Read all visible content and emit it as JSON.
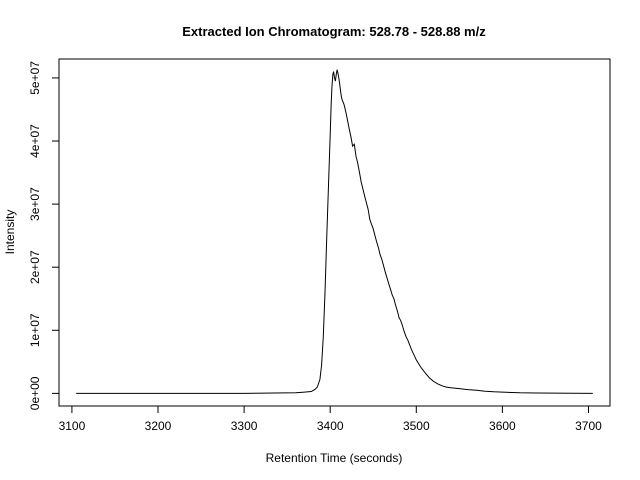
{
  "chart_data": {
    "type": "line",
    "title": "Extracted Ion Chromatogram: 528.78 - 528.88 m/z",
    "xlabel": "Retention Time (seconds)",
    "ylabel": "Intensity",
    "xlim": [
      3085,
      3725
    ],
    "ylim": [
      -2000000,
      53000000
    ],
    "x_ticks": [
      3100,
      3200,
      3300,
      3400,
      3500,
      3600,
      3700
    ],
    "x_tick_labels": [
      "3100",
      "3200",
      "3300",
      "3400",
      "3500",
      "3600",
      "3700"
    ],
    "y_ticks": [
      0,
      10000000,
      20000000,
      30000000,
      40000000,
      50000000
    ],
    "y_tick_labels": [
      "0e+00",
      "1e+07",
      "2e+07",
      "3e+07",
      "4e+07",
      "5e+07"
    ],
    "grid": false,
    "legend": "none",
    "color": "#000000",
    "series": [
      {
        "x": [
          3105,
          3200,
          3300,
          3360,
          3370,
          3378,
          3382,
          3385,
          3388,
          3390,
          3392,
          3394,
          3396,
          3398,
          3400,
          3401,
          3402,
          3403,
          3404,
          3405,
          3406,
          3407,
          3408,
          3409,
          3410,
          3411,
          3412,
          3413,
          3414,
          3416,
          3418,
          3420,
          3422,
          3424,
          3426,
          3428,
          3430,
          3432,
          3434,
          3436,
          3438,
          3440,
          3442,
          3444,
          3446,
          3448,
          3450,
          3452,
          3454,
          3456,
          3458,
          3460,
          3462,
          3464,
          3466,
          3468,
          3470,
          3472,
          3474,
          3476,
          3478,
          3480,
          3482,
          3484,
          3486,
          3488,
          3490,
          3492,
          3494,
          3496,
          3498,
          3500,
          3505,
          3510,
          3515,
          3520,
          3525,
          3530,
          3535,
          3540,
          3550,
          3560,
          3570,
          3580,
          3590,
          3600,
          3620,
          3640,
          3660,
          3680,
          3705
        ],
        "y": [
          0,
          0,
          0,
          100000,
          200000,
          300000,
          600000,
          1000000,
          2200000,
          4500000,
          9000000,
          16000000,
          25000000,
          33000000,
          41000000,
          45500000,
          48500000,
          50500000,
          51000000,
          50000000,
          49500000,
          50500000,
          51300000,
          50800000,
          50000000,
          49000000,
          48000000,
          47000000,
          46500000,
          45800000,
          44700000,
          43400000,
          42000000,
          40700000,
          39200000,
          39500000,
          37600000,
          36500000,
          35000000,
          33500000,
          32400000,
          31300000,
          30200000,
          29200000,
          27600000,
          26800000,
          26100000,
          25000000,
          24000000,
          23100000,
          22000000,
          21200000,
          20200000,
          19200000,
          18300000,
          17400000,
          16500000,
          15600000,
          15000000,
          14000000,
          13100000,
          12000000,
          11500000,
          10700000,
          9800000,
          9000000,
          8500000,
          7800000,
          7100000,
          6500000,
          5900000,
          5300000,
          4200000,
          3300000,
          2500000,
          1900000,
          1500000,
          1200000,
          1000000,
          900000,
          750000,
          600000,
          500000,
          350000,
          250000,
          200000,
          100000,
          60000,
          40000,
          20000,
          0
        ]
      }
    ]
  }
}
